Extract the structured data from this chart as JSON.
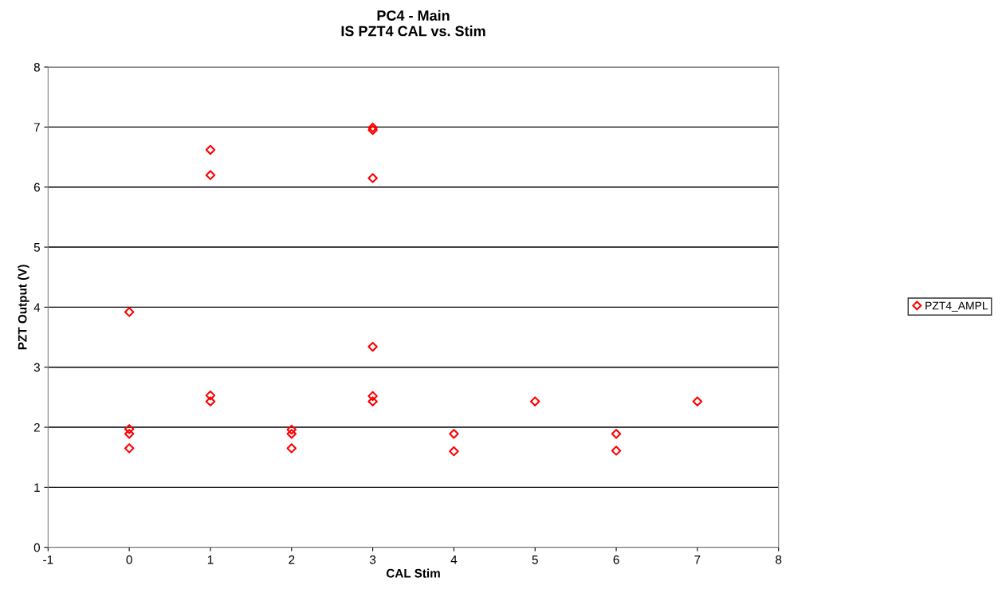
{
  "chart_data": {
    "type": "scatter",
    "title": "PC4 - Main\nIS PZT4 CAL vs. Stim",
    "xlabel": "CAL Stim",
    "ylabel": "PZT Output (V)",
    "xlim": [
      -1,
      8
    ],
    "xticks": [
      -1,
      0,
      1,
      2,
      3,
      4,
      5,
      6,
      7,
      8
    ],
    "ylim": [
      0,
      8
    ],
    "yticks": [
      0,
      1,
      2,
      3,
      4,
      5,
      6,
      7,
      8
    ],
    "grid": "y",
    "legend": "right",
    "marker": "diamond",
    "series": [
      {
        "name": "PZT4_AMPL",
        "color": "#ff0000",
        "x": [
          0,
          0,
          0,
          0,
          1,
          1,
          1,
          1,
          2,
          2,
          2,
          3,
          3,
          3,
          3,
          3,
          3,
          4,
          4,
          5,
          6,
          6,
          7
        ],
        "values": [
          3.92,
          1.89,
          1.97,
          1.65,
          6.62,
          6.2,
          2.43,
          2.53,
          1.89,
          1.96,
          1.65,
          6.99,
          6.95,
          6.15,
          3.34,
          2.43,
          2.52,
          1.89,
          1.6,
          2.43,
          1.89,
          1.61,
          2.43
        ]
      }
    ]
  }
}
